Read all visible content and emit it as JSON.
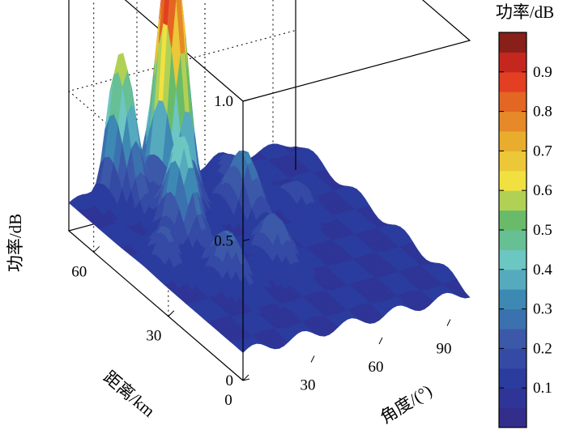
{
  "chart_data": {
    "type": "surface3d",
    "title": "",
    "zlabel": "功率/dB",
    "xlabel": "角度/(°)",
    "ylabel": "距离/km",
    "colorbar_label": "功率/dB",
    "zlim": [
      0,
      1.0
    ],
    "x_ticks": [
      "30",
      "60",
      "90"
    ],
    "y_ticks": [
      "0",
      "30",
      "60"
    ],
    "z_ticks": [
      "0",
      "0.5",
      "1.0"
    ],
    "colorbar_ticks": [
      "0.1",
      "0.2",
      "0.3",
      "0.4",
      "0.5",
      "0.6",
      "0.7",
      "0.8",
      "0.9"
    ],
    "x_range": [
      0,
      100
    ],
    "y_range": [
      0,
      70
    ],
    "peaks": [
      {
        "angle": 35,
        "range": 60,
        "power": 0.95
      },
      {
        "angle": 20,
        "range": 67,
        "power": 0.62
      },
      {
        "angle": 40,
        "range": 67,
        "power": 0.58
      },
      {
        "angle": 25,
        "range": 47,
        "power": 0.48
      },
      {
        "angle": 10,
        "range": 40,
        "power": 0.22
      },
      {
        "angle": 25,
        "range": 28,
        "power": 0.28
      },
      {
        "angle": 48,
        "range": 30,
        "power": 0.26
      },
      {
        "angle": 55,
        "range": 50,
        "power": 0.33
      },
      {
        "angle": 75,
        "range": 47,
        "power": 0.18
      },
      {
        "angle": 65,
        "range": 62,
        "power": 0.2
      }
    ],
    "background_level": 0.1
  }
}
